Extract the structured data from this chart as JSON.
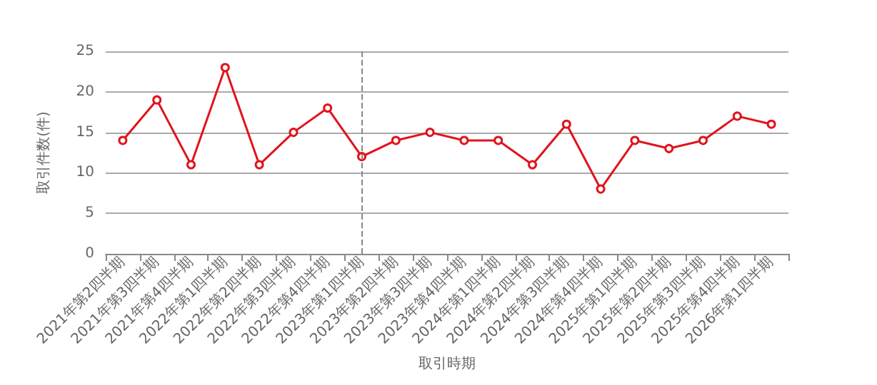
{
  "chart_data": {
    "type": "line",
    "xlabel": "取引時期",
    "ylabel": "取引件数(件)",
    "categories": [
      "2021年第2四半期",
      "2021年第3四半期",
      "2021年第4四半期",
      "2022年第1四半期",
      "2022年第2四半期",
      "2022年第3四半期",
      "2022年第4四半期",
      "2023年第1四半期",
      "2023年第2四半期",
      "2023年第3四半期",
      "2023年第4四半期",
      "2024年第1四半期",
      "2024年第2四半期",
      "2024年第3四半期",
      "2024年第4四半期",
      "2025年第1四半期",
      "2025年第2四半期",
      "2025年第3四半期",
      "2025年第4四半期",
      "2026年第1四半期"
    ],
    "series": [
      {
        "color": "#e0141e",
        "values": [
          14,
          19,
          11,
          23,
          11,
          15,
          18,
          12,
          14,
          15,
          14,
          14,
          11,
          16,
          8,
          14,
          13,
          14,
          17,
          16
        ]
      }
    ],
    "ylim": [
      0,
      25
    ],
    "yticks": [
      0,
      5,
      10,
      15,
      20,
      25
    ],
    "grid": "y",
    "marker": "circle",
    "line_style": "solid",
    "ref_lines": [
      {
        "axis": "x",
        "value": "2023年第1四半期",
        "color": "#888888",
        "line_style": "dashed"
      }
    ]
  }
}
